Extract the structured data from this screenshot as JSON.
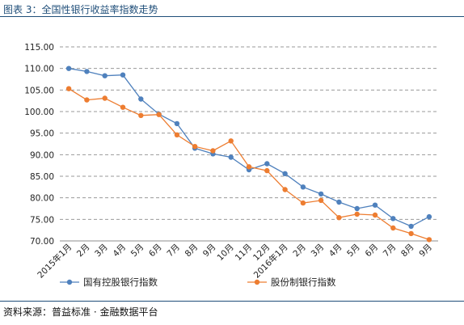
{
  "figure": {
    "title": "图表 3：全国性银行收益率指数走势",
    "source": "资料来源：普益标准 · 金融数据平台"
  },
  "chart_data": {
    "type": "line",
    "title": "",
    "xlabel": "",
    "ylabel": "",
    "categories": [
      "2015年1月",
      "2月",
      "3月",
      "4月",
      "5月",
      "6月",
      "7月",
      "8月",
      "9月",
      "10月",
      "11月",
      "12月",
      "2016年1月",
      "2月",
      "3月",
      "4月",
      "5月",
      "6月",
      "7月",
      "8月",
      "9月"
    ],
    "yticks": [
      "115.00",
      "110.00",
      "105.00",
      "100.00",
      "95.00",
      "90.00",
      "85.00",
      "80.00",
      "75.00",
      "70.00"
    ],
    "ylim": [
      70,
      115
    ],
    "grid": true,
    "legend_position": "bottom",
    "series": [
      {
        "name": "国有控股银行指数",
        "color": "#4f81bd",
        "values": [
          110.0,
          109.3,
          108.3,
          108.5,
          102.9,
          99.4,
          97.2,
          91.5,
          90.2,
          89.4,
          86.5,
          87.9,
          85.6,
          82.5,
          80.9,
          79.0,
          77.5,
          78.3,
          75.2,
          73.4,
          75.6
        ]
      },
      {
        "name": "股份制银行指数",
        "color": "#ed7d31",
        "values": [
          105.3,
          102.7,
          103.1,
          101.0,
          99.1,
          99.3,
          94.6,
          91.9,
          90.9,
          93.2,
          87.2,
          86.3,
          81.9,
          78.8,
          79.4,
          75.4,
          76.2,
          76.0,
          73.0,
          71.7,
          70.3
        ]
      }
    ]
  }
}
